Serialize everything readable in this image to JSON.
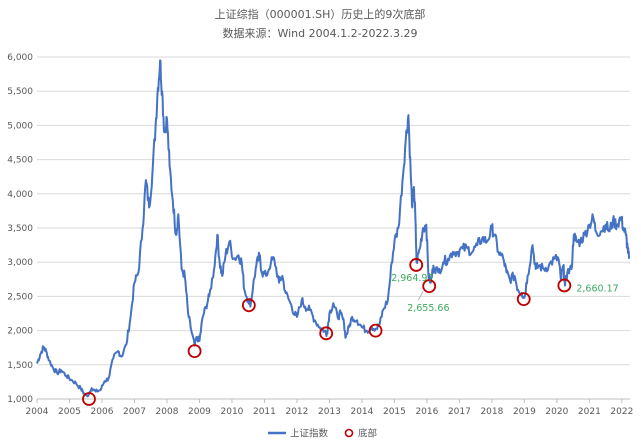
{
  "colors": {
    "line": "#4472C4",
    "marker": "#C00000",
    "annotation": "#3BAA5C",
    "grid": "#D9D9D9",
    "text": "#595959"
  },
  "chart_data": {
    "type": "line",
    "title": "上证综指（000001.SH）历史上的9次底部",
    "subtitle": "数据来源：Wind 2004.1.2-2022.3.29",
    "xlim": [
      2004.0,
      2022.25
    ],
    "ylim": [
      1000,
      6000
    ],
    "yticks": [
      1000,
      1500,
      2000,
      2500,
      3000,
      3500,
      4000,
      4500,
      5000,
      5500,
      6000
    ],
    "ytick_labels": [
      "1,000",
      "1,500",
      "2,000",
      "2,500",
      "3,000",
      "3,500",
      "4,000",
      "4,500",
      "5,000",
      "5,500",
      "6,000"
    ],
    "xticks": [
      2004,
      2005,
      2006,
      2007,
      2008,
      2009,
      2010,
      2011,
      2012,
      2013,
      2014,
      2015,
      2016,
      2017,
      2018,
      2019,
      2020,
      2021,
      2022
    ],
    "xtick_labels": [
      "2004",
      "2005",
      "2006",
      "2007",
      "2008",
      "2009",
      "2010",
      "2011",
      "2012",
      "2013",
      "2014",
      "2015",
      "2016",
      "2017",
      "2018",
      "2019",
      "2020",
      "2021",
      "2022"
    ],
    "grid": true,
    "legend_position": "bottom-center",
    "series": [
      {
        "name": "上证指数",
        "kind": "line",
        "points": [
          [
            2004.0,
            1520
          ],
          [
            2004.1,
            1650
          ],
          [
            2004.2,
            1760
          ],
          [
            2004.28,
            1700
          ],
          [
            2004.38,
            1560
          ],
          [
            2004.5,
            1450
          ],
          [
            2004.62,
            1380
          ],
          [
            2004.75,
            1420
          ],
          [
            2004.9,
            1340
          ],
          [
            2005.05,
            1280
          ],
          [
            2005.2,
            1230
          ],
          [
            2005.35,
            1150
          ],
          [
            2005.45,
            1080
          ],
          [
            2005.55,
            1040
          ],
          [
            2005.68,
            1160
          ],
          [
            2005.8,
            1110
          ],
          [
            2005.95,
            1130
          ],
          [
            2006.08,
            1260
          ],
          [
            2006.2,
            1300
          ],
          [
            2006.35,
            1600
          ],
          [
            2006.5,
            1700
          ],
          [
            2006.6,
            1620
          ],
          [
            2006.75,
            1800
          ],
          [
            2006.88,
            2200
          ],
          [
            2007.0,
            2700
          ],
          [
            2007.12,
            2850
          ],
          [
            2007.25,
            3500
          ],
          [
            2007.35,
            4200
          ],
          [
            2007.45,
            3800
          ],
          [
            2007.55,
            4300
          ],
          [
            2007.65,
            5000
          ],
          [
            2007.72,
            5550
          ],
          [
            2007.79,
            5950
          ],
          [
            2007.85,
            5500
          ],
          [
            2007.92,
            4900
          ],
          [
            2008.0,
            5100
          ],
          [
            2008.08,
            4400
          ],
          [
            2008.18,
            3900
          ],
          [
            2008.28,
            3400
          ],
          [
            2008.35,
            3700
          ],
          [
            2008.45,
            2900
          ],
          [
            2008.55,
            2800
          ],
          [
            2008.65,
            2250
          ],
          [
            2008.75,
            2000
          ],
          [
            2008.85,
            1780
          ],
          [
            2008.92,
            1900
          ],
          [
            2009.0,
            1850
          ],
          [
            2009.1,
            2200
          ],
          [
            2009.2,
            2350
          ],
          [
            2009.3,
            2500
          ],
          [
            2009.45,
            2900
          ],
          [
            2009.55,
            3400
          ],
          [
            2009.62,
            3000
          ],
          [
            2009.7,
            2800
          ],
          [
            2009.8,
            3100
          ],
          [
            2009.92,
            3300
          ],
          [
            2010.05,
            3050
          ],
          [
            2010.2,
            3100
          ],
          [
            2010.3,
            3000
          ],
          [
            2010.38,
            2600
          ],
          [
            2010.5,
            2450
          ],
          [
            2010.58,
            2400
          ],
          [
            2010.65,
            2650
          ],
          [
            2010.75,
            2950
          ],
          [
            2010.85,
            3100
          ],
          [
            2010.92,
            2850
          ],
          [
            2011.05,
            2800
          ],
          [
            2011.2,
            3000
          ],
          [
            2011.3,
            3050
          ],
          [
            2011.45,
            2700
          ],
          [
            2011.55,
            2800
          ],
          [
            2011.65,
            2550
          ],
          [
            2011.8,
            2400
          ],
          [
            2011.92,
            2250
          ],
          [
            2012.0,
            2200
          ],
          [
            2012.15,
            2450
          ],
          [
            2012.25,
            2350
          ],
          [
            2012.4,
            2300
          ],
          [
            2012.55,
            2150
          ],
          [
            2012.7,
            2050
          ],
          [
            2012.85,
            2000
          ],
          [
            2012.92,
            1950
          ],
          [
            2013.0,
            2250
          ],
          [
            2013.12,
            2400
          ],
          [
            2013.25,
            2200
          ],
          [
            2013.35,
            2250
          ],
          [
            2013.45,
            2100
          ],
          [
            2013.5,
            1900
          ],
          [
            2013.6,
            2050
          ],
          [
            2013.7,
            2200
          ],
          [
            2013.85,
            2150
          ],
          [
            2014.0,
            2050
          ],
          [
            2014.15,
            2000
          ],
          [
            2014.3,
            2050
          ],
          [
            2014.45,
            2030
          ],
          [
            2014.55,
            2100
          ],
          [
            2014.65,
            2300
          ],
          [
            2014.8,
            2450
          ],
          [
            2014.92,
            3000
          ],
          [
            2015.0,
            3300
          ],
          [
            2015.12,
            3500
          ],
          [
            2015.25,
            4200
          ],
          [
            2015.35,
            4800
          ],
          [
            2015.43,
            5150
          ],
          [
            2015.5,
            4300
          ],
          [
            2015.55,
            3800
          ],
          [
            2015.6,
            4100
          ],
          [
            2015.65,
            3600
          ],
          [
            2015.68,
            3000
          ],
          [
            2015.78,
            3200
          ],
          [
            2015.88,
            3500
          ],
          [
            2015.98,
            3550
          ],
          [
            2016.05,
            2800
          ],
          [
            2016.12,
            2700
          ],
          [
            2016.2,
            2950
          ],
          [
            2016.35,
            2850
          ],
          [
            2016.5,
            3000
          ],
          [
            2016.65,
            3050
          ],
          [
            2016.8,
            3150
          ],
          [
            2016.95,
            3150
          ],
          [
            2017.1,
            3200
          ],
          [
            2017.25,
            3200
          ],
          [
            2017.4,
            3150
          ],
          [
            2017.55,
            3250
          ],
          [
            2017.7,
            3350
          ],
          [
            2017.85,
            3300
          ],
          [
            2018.0,
            3500
          ],
          [
            2018.08,
            3400
          ],
          [
            2018.2,
            3150
          ],
          [
            2018.35,
            3050
          ],
          [
            2018.45,
            2850
          ],
          [
            2018.55,
            2750
          ],
          [
            2018.7,
            2800
          ],
          [
            2018.8,
            2600
          ],
          [
            2018.92,
            2550
          ],
          [
            2019.0,
            2480
          ],
          [
            2019.1,
            2800
          ],
          [
            2019.25,
            3250
          ],
          [
            2019.35,
            2900
          ],
          [
            2019.45,
            2950
          ],
          [
            2019.6,
            2900
          ],
          [
            2019.75,
            2950
          ],
          [
            2019.92,
            3050
          ],
          [
            2020.05,
            3050
          ],
          [
            2020.12,
            2750
          ],
          [
            2020.2,
            2950
          ],
          [
            2020.25,
            2660
          ],
          [
            2020.32,
            2850
          ],
          [
            2020.45,
            2900
          ],
          [
            2020.52,
            3400
          ],
          [
            2020.6,
            3300
          ],
          [
            2020.72,
            3300
          ],
          [
            2020.85,
            3400
          ],
          [
            2021.0,
            3550
          ],
          [
            2021.12,
            3650
          ],
          [
            2021.2,
            3450
          ],
          [
            2021.35,
            3450
          ],
          [
            2021.5,
            3550
          ],
          [
            2021.62,
            3450
          ],
          [
            2021.72,
            3600
          ],
          [
            2021.85,
            3550
          ],
          [
            2021.97,
            3650
          ],
          [
            2022.05,
            3500
          ],
          [
            2022.12,
            3400
          ],
          [
            2022.18,
            3200
          ],
          [
            2022.22,
            3050
          ]
        ]
      },
      {
        "name": "底部",
        "kind": "markers",
        "points": [
          [
            2005.6,
            1000
          ],
          [
            2008.85,
            1700
          ],
          [
            2010.52,
            2370
          ],
          [
            2012.9,
            1960
          ],
          [
            2014.42,
            2000
          ],
          [
            2015.67,
            2960
          ],
          [
            2016.07,
            2650
          ],
          [
            2018.98,
            2460
          ],
          [
            2020.23,
            2660
          ]
        ]
      }
    ],
    "annotations": [
      {
        "label": "2,964.97",
        "x": 2015.67,
        "y": 2960
      },
      {
        "label": "2,655.66",
        "x": 2016.07,
        "y": 2650
      },
      {
        "label": "2,660.17",
        "x": 2020.23,
        "y": 2660
      }
    ]
  }
}
